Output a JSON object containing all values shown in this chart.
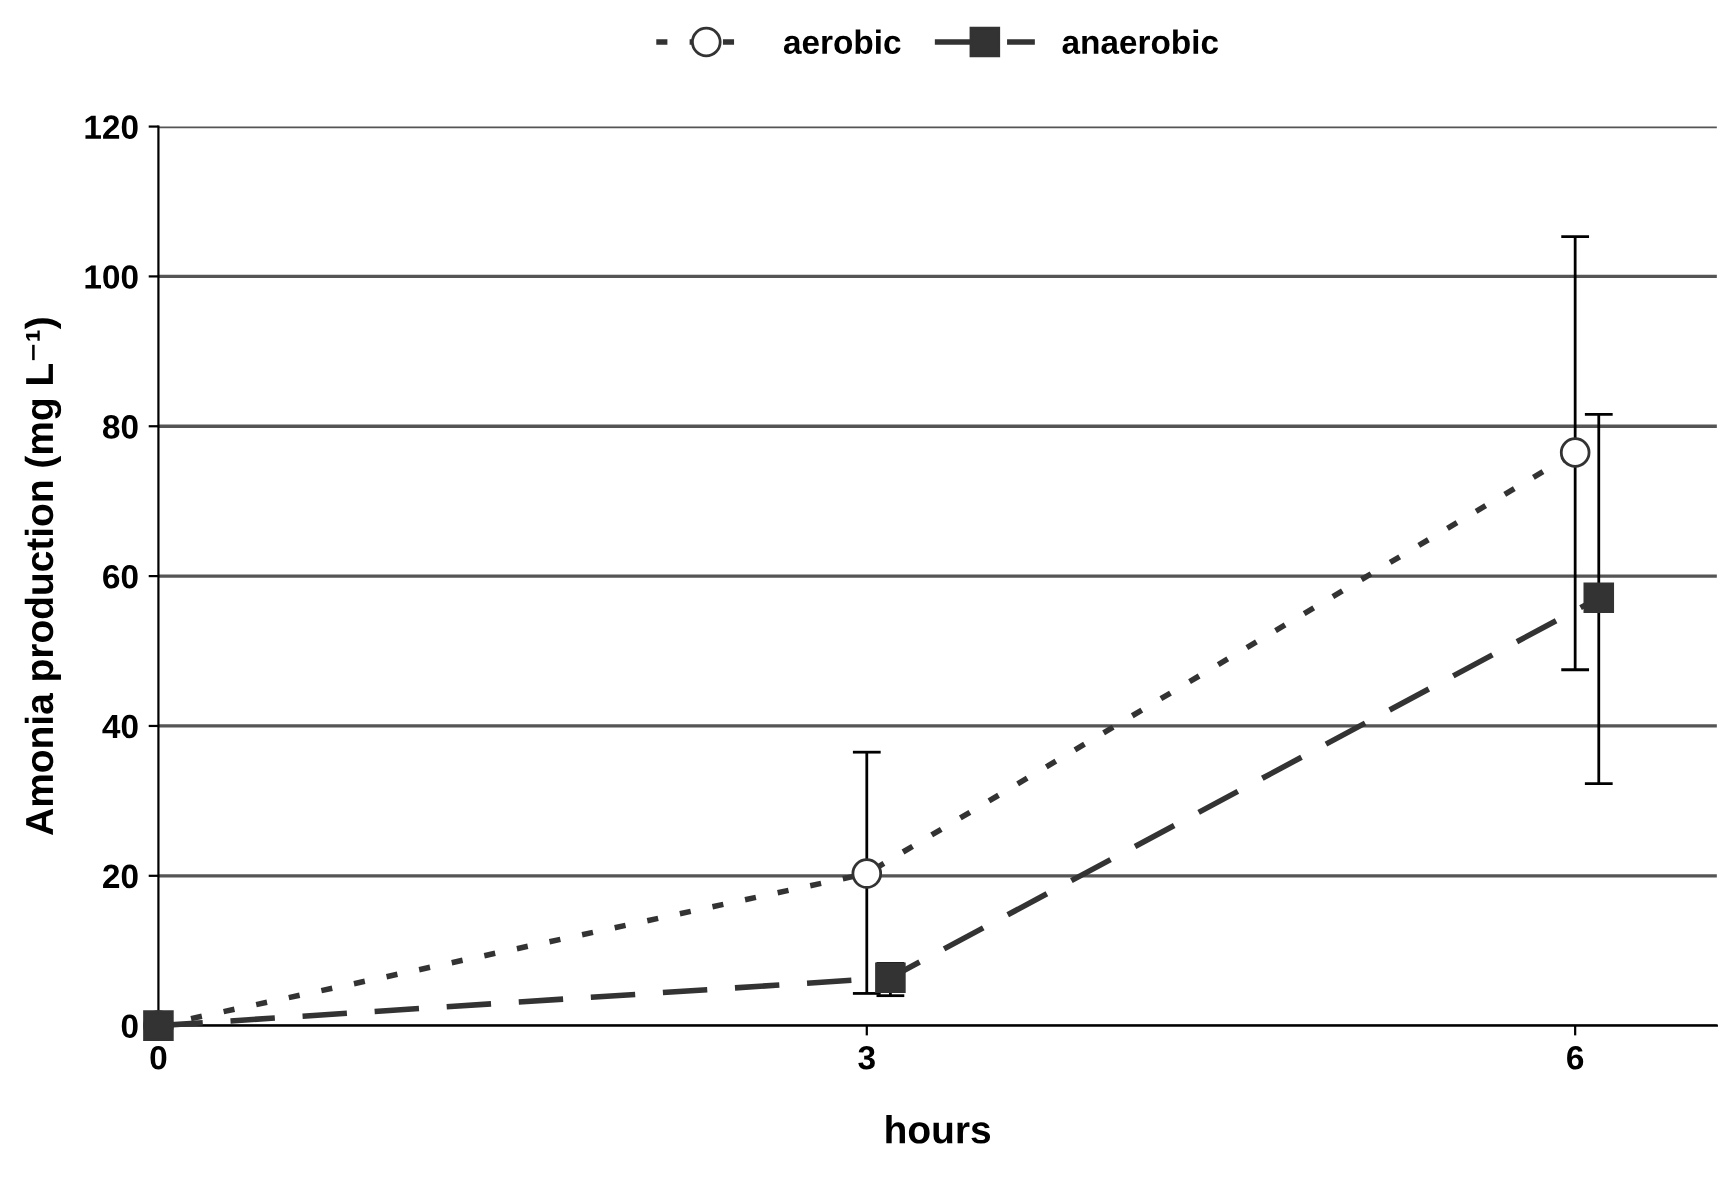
{
  "chart_data": {
    "type": "line",
    "xlabel": "hours",
    "ylabel": "Amonia production (mg L⁻¹)",
    "xlim": [
      0,
      6.6
    ],
    "xticks": [
      0,
      3,
      6
    ],
    "ylim": [
      0,
      120
    ],
    "yticks": [
      0,
      20,
      40,
      60,
      80,
      100,
      120
    ],
    "grid": "y",
    "legend": "top",
    "series": [
      {
        "name": "aerobic",
        "color": "#333333",
        "x": [
          0,
          3,
          6
        ],
        "values": [
          0,
          20.3,
          76.5
        ],
        "errors": [
          null,
          [
            4.3,
            36.5
          ],
          [
            47.5,
            105.3
          ]
        ],
        "marker": "circle",
        "line_style": "dotted"
      },
      {
        "name": "anaerobic",
        "color": "#333333",
        "x": [
          0,
          3.1,
          6.1
        ],
        "values": [
          0,
          6.4,
          57.1
        ],
        "errors": [
          null,
          [
            4.0,
            8.3
          ],
          [
            32.3,
            81.6
          ]
        ],
        "marker": "square",
        "line_style": "dashed"
      }
    ]
  }
}
